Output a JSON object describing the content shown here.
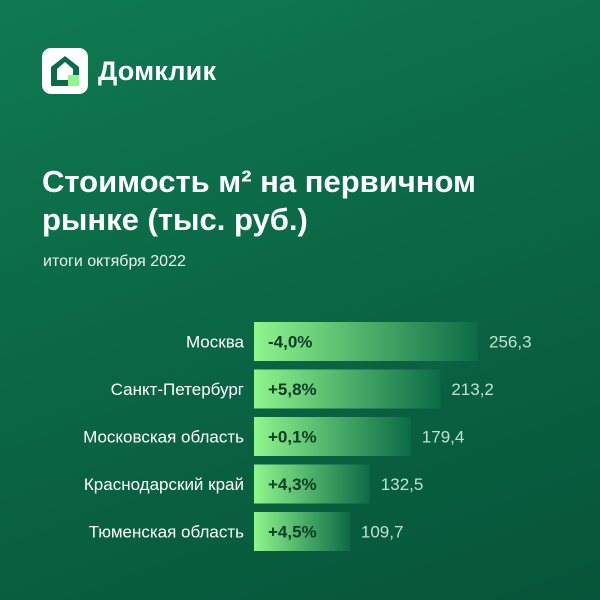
{
  "brand": {
    "name": "Домклик",
    "logo_icon": "house-logo-icon"
  },
  "colors": {
    "background_from": "#0f7a52",
    "background_to": "#07553a",
    "bar_from": "#8ff58c",
    "bar_to": "#0c6b47",
    "value_text": "#bfe3cf"
  },
  "chart_data": {
    "type": "bar",
    "orientation": "horizontal",
    "title": "Стоимость м² на первичном рынке (тыс. руб.)",
    "title_lines": [
      "Стоимость м² на первичном",
      "рынке (тыс. руб.)"
    ],
    "subtitle": "итоги октября 2022",
    "categories": [
      "Москва",
      "Санкт-Петербург",
      "Московская  область",
      "Краснодарский край",
      "Тюменская область"
    ],
    "values": [
      256.3,
      213.2,
      179.4,
      132.5,
      109.7
    ],
    "value_labels": [
      "256,3",
      "213,2",
      "179,4",
      "132,5",
      "109,7"
    ],
    "change_labels": [
      "-4,0%",
      "+5,8%",
      "+0,1%",
      "+4,3%",
      "+4,5%"
    ],
    "xlim": [
      0,
      260
    ],
    "grid": false,
    "legend": "none"
  }
}
